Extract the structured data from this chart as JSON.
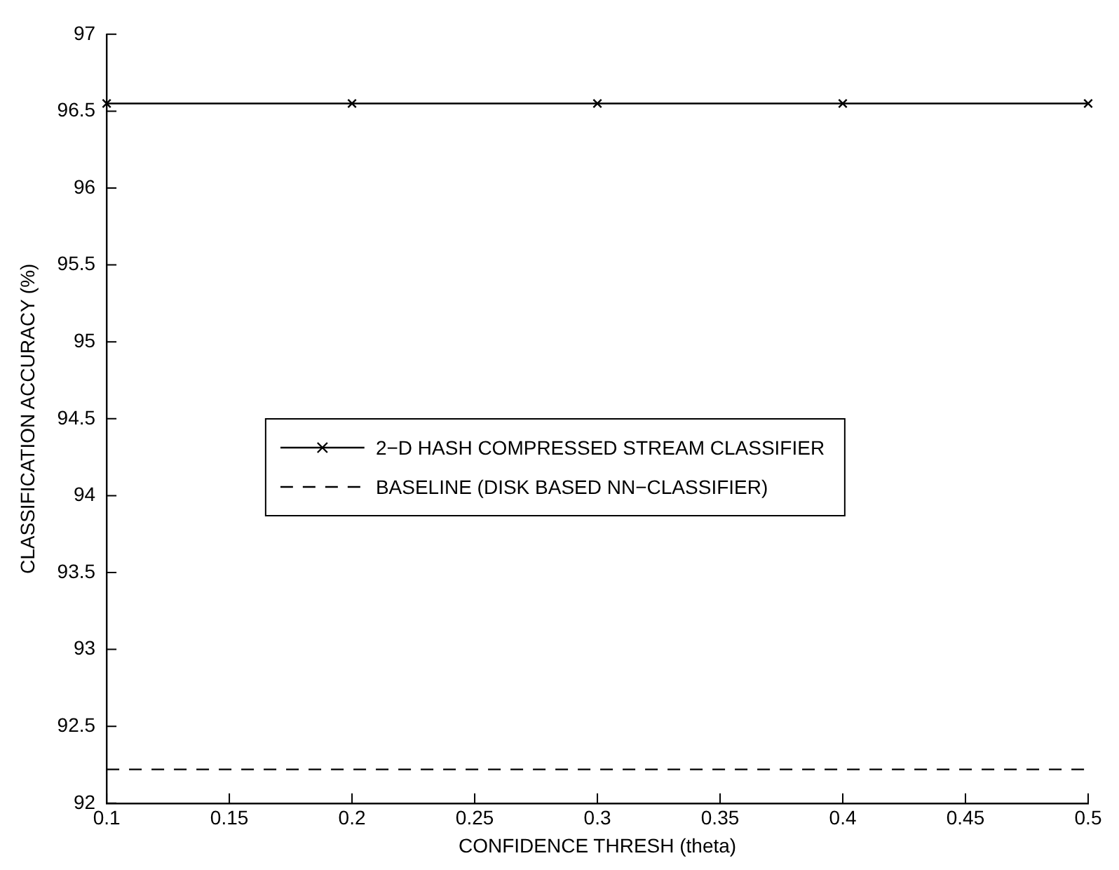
{
  "chart_data": {
    "type": "line",
    "xlabel": "CONFIDENCE THRESH (theta)",
    "ylabel": "CLASSIFICATION ACCURACY (%)",
    "x": [
      0.1,
      0.2,
      0.3,
      0.4,
      0.5
    ],
    "series": [
      {
        "name": "2−D HASH COMPRESSED STREAM CLASSIFIER",
        "color": "#000000",
        "values": [
          96.55,
          96.55,
          96.55,
          96.55,
          96.55
        ],
        "marker": "cross",
        "line_style": "solid"
      },
      {
        "name": "BASELINE (DISK BASED NN−CLASSIFIER)",
        "color": "#000000",
        "values": [
          92.22,
          92.22,
          92.22,
          92.22,
          92.22
        ],
        "marker": "none",
        "line_style": "dashed"
      }
    ],
    "xlim": [
      0.1,
      0.5
    ],
    "xticks": [
      0.1,
      0.15,
      0.2,
      0.25,
      0.3,
      0.35,
      0.4,
      0.45,
      0.5
    ],
    "ylim": [
      92,
      97
    ],
    "yticks": [
      92,
      92.5,
      93,
      93.5,
      94,
      94.5,
      95,
      95.5,
      96,
      96.5,
      97
    ],
    "grid": false,
    "legend": "center"
  }
}
